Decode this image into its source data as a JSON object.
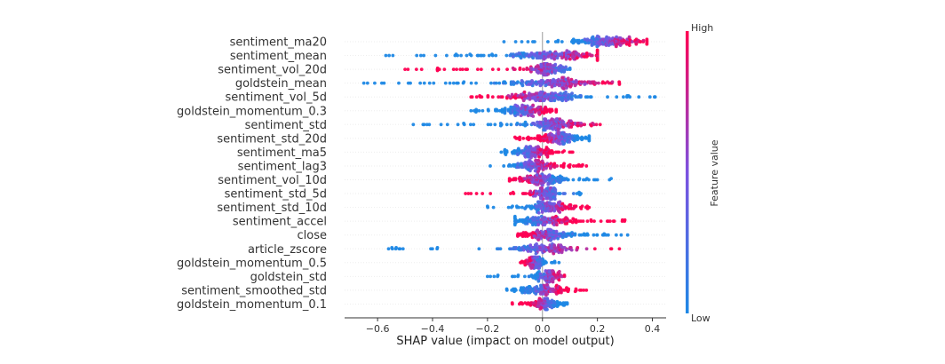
{
  "chart_data": {
    "type": "scatter",
    "subtype": "shap-beeswarm",
    "title": "",
    "xlabel": "SHAP value (impact on model output)",
    "xlim": [
      -0.72,
      0.45
    ],
    "xticks": [
      -0.6,
      -0.4,
      -0.2,
      0.0,
      0.2,
      0.4
    ],
    "xtick_labels": [
      "−0.6",
      "−0.4",
      "−0.2",
      "0.0",
      "0.2",
      "0.4"
    ],
    "colorbar": {
      "label": "Feature value",
      "high": "High",
      "low": "Low",
      "low_color": "#1e88e5",
      "high_color": "#ff0052"
    },
    "grid": false,
    "features": [
      {
        "name": "sentiment_ma20",
        "min": -0.14,
        "max": 0.38,
        "center": 0.24,
        "spread": 0.07,
        "trend": 1,
        "n": 170
      },
      {
        "name": "sentiment_mean",
        "min": -0.57,
        "max": 0.2,
        "center": 0.03,
        "spread": 0.1,
        "trend": 1,
        "n": 190
      },
      {
        "name": "sentiment_vol_20d",
        "min": -0.5,
        "max": 0.1,
        "center": 0.02,
        "spread": 0.04,
        "trend": -1,
        "n": 150
      },
      {
        "name": "goldstein_mean",
        "min": -0.65,
        "max": 0.28,
        "center": 0.05,
        "spread": 0.09,
        "trend": 1,
        "n": 190
      },
      {
        "name": "sentiment_vol_5d",
        "min": -0.26,
        "max": 0.41,
        "center": 0.0,
        "spread": 0.08,
        "trend": -1,
        "n": 190
      },
      {
        "name": "goldstein_momentum_0.3",
        "min": -0.26,
        "max": 0.05,
        "center": -0.06,
        "spread": 0.05,
        "trend": 1,
        "n": 150
      },
      {
        "name": "sentiment_std",
        "min": -0.47,
        "max": 0.21,
        "center": 0.04,
        "spread": 0.06,
        "trend": 1,
        "n": 170
      },
      {
        "name": "sentiment_std_20d",
        "min": -0.1,
        "max": 0.17,
        "center": 0.06,
        "spread": 0.05,
        "trend": -1,
        "n": 150
      },
      {
        "name": "sentiment_ma5",
        "min": -0.15,
        "max": 0.11,
        "center": -0.04,
        "spread": 0.04,
        "trend": 1,
        "n": 130
      },
      {
        "name": "sentiment_lag3",
        "min": -0.19,
        "max": 0.16,
        "center": -0.03,
        "spread": 0.04,
        "trend": 1,
        "n": 130
      },
      {
        "name": "sentiment_vol_10d",
        "min": -0.12,
        "max": 0.25,
        "center": 0.0,
        "spread": 0.05,
        "trend": -1,
        "n": 150
      },
      {
        "name": "sentiment_std_5d",
        "min": -0.28,
        "max": 0.14,
        "center": 0.01,
        "spread": 0.03,
        "trend": -1,
        "n": 120
      },
      {
        "name": "sentiment_std_10d",
        "min": -0.2,
        "max": 0.17,
        "center": 0.03,
        "spread": 0.05,
        "trend": 1,
        "n": 140
      },
      {
        "name": "sentiment_accel",
        "min": -0.1,
        "max": 0.3,
        "center": 0.01,
        "spread": 0.06,
        "trend": 1,
        "n": 150
      },
      {
        "name": "close",
        "min": -0.09,
        "max": 0.31,
        "center": 0.02,
        "spread": 0.05,
        "trend": -1,
        "n": 150
      },
      {
        "name": "article_zscore",
        "min": -0.56,
        "max": 0.28,
        "center": 0.01,
        "spread": 0.05,
        "trend": 1,
        "n": 140
      },
      {
        "name": "goldstein_momentum_0.5",
        "min": -0.08,
        "max": 0.06,
        "center": -0.03,
        "spread": 0.02,
        "trend": -1,
        "n": 90
      },
      {
        "name": "goldstein_std",
        "min": -0.2,
        "max": 0.08,
        "center": 0.02,
        "spread": 0.03,
        "trend": 1,
        "n": 110
      },
      {
        "name": "sentiment_smoothed_std",
        "min": -0.13,
        "max": 0.16,
        "center": 0.0,
        "spread": 0.05,
        "trend": 1,
        "n": 130
      },
      {
        "name": "goldstein_momentum_0.1",
        "min": -0.11,
        "max": 0.09,
        "center": 0.01,
        "spread": 0.03,
        "trend": -1,
        "n": 110
      }
    ]
  }
}
